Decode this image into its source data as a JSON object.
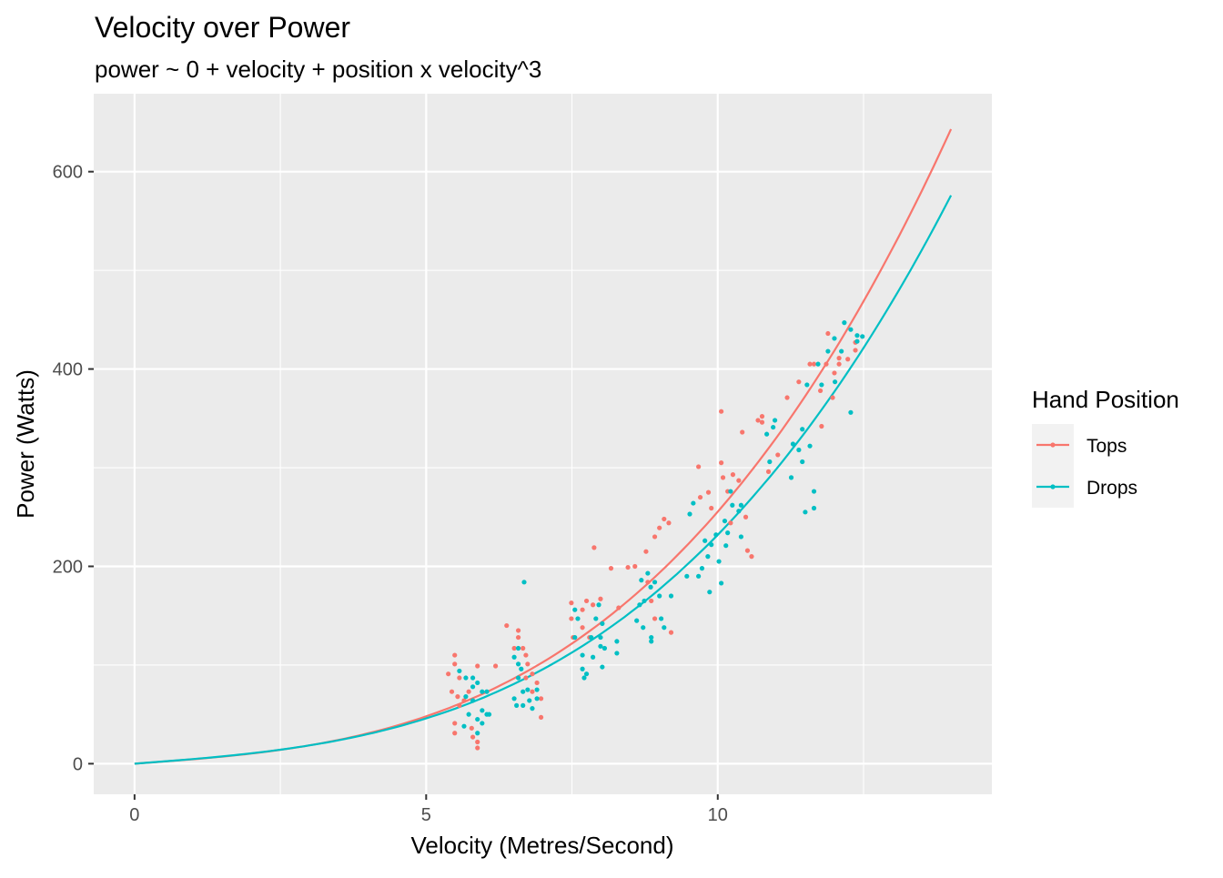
{
  "chart_data": {
    "type": "scatter",
    "title": "Velocity over Power",
    "subtitle": "power ~ 0 + velocity + position x velocity^3",
    "xlabel": "Velocity (Metres/Second)",
    "ylabel": "Power (Watts)",
    "xlim": [
      -0.7,
      14.7
    ],
    "ylim": [
      -31,
      679
    ],
    "x_ticks": [
      0,
      5,
      10
    ],
    "x_tick_labels": [
      "0",
      "5",
      "10"
    ],
    "y_ticks": [
      0,
      200,
      400,
      600
    ],
    "y_tick_labels": [
      "0",
      "200",
      "400",
      "600"
    ],
    "grid": true,
    "legend": {
      "title": "Hand Position",
      "placement": "right",
      "entries": [
        "Tops",
        "Drops"
      ]
    },
    "series": [
      {
        "name": "Tops",
        "color": "#F8766D",
        "fit": {
          "a": 4.29,
          "b": 0.2125,
          "x_range": [
            0,
            14
          ]
        },
        "points": [
          [
            5.38,
            91
          ],
          [
            5.49,
            110
          ],
          [
            5.49,
            101
          ],
          [
            5.44,
            73
          ],
          [
            5.54,
            68
          ],
          [
            5.57,
            59
          ],
          [
            5.49,
            41
          ],
          [
            5.49,
            31
          ],
          [
            5.73,
            73
          ],
          [
            5.78,
            36
          ],
          [
            5.8,
            27
          ],
          [
            5.88,
            22
          ],
          [
            5.88,
            16
          ],
          [
            5.88,
            99
          ],
          [
            6.19,
            99
          ],
          [
            5.57,
            87
          ],
          [
            5.65,
            64
          ],
          [
            6.38,
            140
          ],
          [
            6.58,
            135
          ],
          [
            6.58,
            128
          ],
          [
            6.51,
            117
          ],
          [
            6.66,
            117
          ],
          [
            6.71,
            110
          ],
          [
            6.74,
            101
          ],
          [
            6.82,
            91
          ],
          [
            6.9,
            82
          ],
          [
            6.97,
            66
          ],
          [
            6.97,
            47
          ],
          [
            6.82,
            73
          ],
          [
            6.71,
            87
          ],
          [
            7.49,
            163
          ],
          [
            7.49,
            147
          ],
          [
            7.68,
            156
          ],
          [
            7.75,
            165
          ],
          [
            7.86,
            161
          ],
          [
            7.88,
            219
          ],
          [
            7.52,
            128
          ],
          [
            7.68,
            138
          ],
          [
            7.8,
            128
          ],
          [
            7.99,
            167
          ],
          [
            8.17,
            198
          ],
          [
            8.3,
            158
          ],
          [
            8.46,
            199
          ],
          [
            8.58,
            200
          ],
          [
            8.77,
            215
          ],
          [
            8.92,
            230
          ],
          [
            9.0,
            239
          ],
          [
            9.08,
            248
          ],
          [
            8.8,
            184
          ],
          [
            8.86,
            165
          ],
          [
            8.92,
            147
          ],
          [
            9.2,
            133
          ],
          [
            9.16,
            244
          ],
          [
            9.67,
            301
          ],
          [
            9.7,
            270
          ],
          [
            9.84,
            275
          ],
          [
            9.89,
            259
          ],
          [
            10.06,
            357
          ],
          [
            10.06,
            305
          ],
          [
            10.09,
            290
          ],
          [
            10.17,
            276
          ],
          [
            10.26,
            293
          ],
          [
            10.22,
            244
          ],
          [
            10.48,
            250
          ],
          [
            10.51,
            216
          ],
          [
            10.58,
            210
          ],
          [
            10.36,
            287
          ],
          [
            10.42,
            336
          ],
          [
            10.69,
            348
          ],
          [
            10.76,
            352
          ],
          [
            10.76,
            346
          ],
          [
            10.87,
            296
          ],
          [
            11.03,
            313
          ],
          [
            11.19,
            371
          ],
          [
            11.39,
            387
          ],
          [
            11.58,
            405
          ],
          [
            11.65,
            405
          ],
          [
            11.76,
            378
          ],
          [
            11.78,
            342
          ],
          [
            11.86,
            405
          ],
          [
            11.97,
            371
          ],
          [
            12.0,
            396
          ],
          [
            12.08,
            405
          ],
          [
            12.08,
            411
          ],
          [
            11.89,
            436
          ],
          [
            12.23,
            410
          ],
          [
            12.36,
            419
          ],
          [
            12.36,
            427
          ]
        ]
      },
      {
        "name": "Drops",
        "color": "#00BFC4",
        "fit": {
          "a": 4.51,
          "b": 0.1869,
          "x_range": [
            0,
            14
          ]
        },
        "points": [
          [
            5.57,
            94
          ],
          [
            5.68,
            87
          ],
          [
            5.68,
            68
          ],
          [
            5.73,
            50
          ],
          [
            5.8,
            64
          ],
          [
            5.8,
            78
          ],
          [
            5.88,
            82
          ],
          [
            5.88,
            45
          ],
          [
            5.88,
            31
          ],
          [
            5.96,
            73
          ],
          [
            5.96,
            54
          ],
          [
            5.96,
            41
          ],
          [
            6.04,
            73
          ],
          [
            6.04,
            50
          ],
          [
            6.08,
            50
          ],
          [
            5.65,
            38
          ],
          [
            5.8,
            87
          ],
          [
            6.51,
            108
          ],
          [
            6.58,
            117
          ],
          [
            6.58,
            101
          ],
          [
            6.58,
            87
          ],
          [
            6.66,
            73
          ],
          [
            6.68,
            184
          ],
          [
            6.51,
            66
          ],
          [
            6.55,
            59
          ],
          [
            6.66,
            59
          ],
          [
            6.74,
            75
          ],
          [
            6.77,
            64
          ],
          [
            6.82,
            56
          ],
          [
            6.9,
            66
          ],
          [
            6.9,
            75
          ],
          [
            6.63,
            96
          ],
          [
            7.55,
            156
          ],
          [
            7.6,
            147
          ],
          [
            7.55,
            128
          ],
          [
            7.68,
            110
          ],
          [
            7.68,
            96
          ],
          [
            7.71,
            87
          ],
          [
            7.75,
            91
          ],
          [
            7.83,
            128
          ],
          [
            7.86,
            108
          ],
          [
            7.99,
            128
          ],
          [
            7.99,
            119
          ],
          [
            8.02,
            142
          ],
          [
            8.06,
            117
          ],
          [
            8.02,
            98
          ],
          [
            8.27,
            124
          ],
          [
            8.27,
            112
          ],
          [
            7.91,
            147
          ],
          [
            7.96,
            161
          ],
          [
            8.61,
            145
          ],
          [
            8.66,
            161
          ],
          [
            8.69,
            186
          ],
          [
            8.74,
            165
          ],
          [
            8.8,
            193
          ],
          [
            8.85,
            179
          ],
          [
            8.86,
            128
          ],
          [
            8.86,
            124
          ],
          [
            8.92,
            184
          ],
          [
            9.0,
            170
          ],
          [
            9.03,
            147
          ],
          [
            9.08,
            138
          ],
          [
            9.2,
            170
          ],
          [
            8.72,
            138
          ],
          [
            9.47,
            190
          ],
          [
            9.52,
            253
          ],
          [
            9.58,
            264
          ],
          [
            9.67,
            190
          ],
          [
            9.73,
            198
          ],
          [
            9.83,
            210
          ],
          [
            9.86,
            174
          ],
          [
            10.02,
            205
          ],
          [
            10.06,
            183
          ],
          [
            10.12,
            246
          ],
          [
            10.14,
            221
          ],
          [
            10.17,
            234
          ],
          [
            10.22,
            276
          ],
          [
            10.25,
            262
          ],
          [
            10.36,
            256
          ],
          [
            10.4,
            262
          ],
          [
            10.4,
            230
          ],
          [
            9.89,
            222
          ],
          [
            9.78,
            226
          ],
          [
            9.97,
            232
          ],
          [
            10.84,
            334
          ],
          [
            10.95,
            341
          ],
          [
            10.98,
            348
          ],
          [
            10.89,
            306
          ],
          [
            11.26,
            290
          ],
          [
            11.29,
            324
          ],
          [
            11.39,
            318
          ],
          [
            11.45,
            306
          ],
          [
            11.45,
            339
          ],
          [
            11.5,
            255
          ],
          [
            11.58,
            322
          ],
          [
            11.65,
            276
          ],
          [
            11.65,
            259
          ],
          [
            11.53,
            384
          ],
          [
            11.72,
            405
          ],
          [
            11.78,
            384
          ],
          [
            11.89,
            418
          ],
          [
            12.0,
            431
          ],
          [
            12.12,
            418
          ],
          [
            12.17,
            447
          ],
          [
            12.28,
            440
          ],
          [
            12.28,
            356
          ],
          [
            12.39,
            434
          ],
          [
            12.39,
            428
          ],
          [
            12.48,
            433
          ],
          [
            12.01,
            387
          ]
        ]
      }
    ]
  }
}
